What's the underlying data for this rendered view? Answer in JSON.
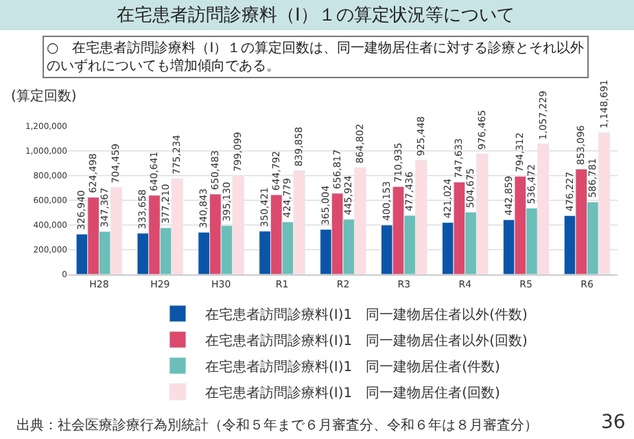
{
  "chart_data": {
    "type": "bar",
    "title": "在宅患者訪問診療料（Ⅰ）１の算定状況等について",
    "subtitle": "○　在宅患者訪問診療料（Ⅰ）１の算定回数は、同一建物居住者に対する診療とそれ以外のいずれについても増加傾向である。",
    "ylabel": "(算定回数)",
    "categories": [
      "H28",
      "H29",
      "H30",
      "R1",
      "R2",
      "R3",
      "R4",
      "R5",
      "R6"
    ],
    "series": [
      {
        "name": "在宅患者訪問診療料(Ⅰ)1　同一建物居住者以外(件数)",
        "color": "#0b55a8",
        "values": [
          326940,
          333658,
          340843,
          350421,
          365004,
          400153,
          421024,
          442859,
          476227
        ],
        "value_labels": [
          "326,940",
          "333,658",
          "340,843",
          "350,421",
          "365,004",
          "400,153",
          "421,024",
          "442,859",
          "476,227"
        ]
      },
      {
        "name": "在宅患者訪問診療料(Ⅰ)1　同一建物居住者以外(回数)",
        "color": "#db4a6c",
        "values": [
          624498,
          640641,
          650483,
          644792,
          656817,
          710935,
          747633,
          794312,
          853096
        ],
        "value_labels": [
          "624,498",
          "640,641",
          "650,483",
          "644,792",
          "656,817",
          "710,935",
          "747,633",
          "794,312",
          "853,096"
        ]
      },
      {
        "name": "在宅患者訪問診療料(Ⅰ)1　同一建物居住者(件数)",
        "color": "#6bbfb8",
        "values": [
          347367,
          377210,
          395130,
          424779,
          445924,
          477436,
          504675,
          536472,
          586781
        ],
        "value_labels": [
          "347,367",
          "377,210",
          "395,130",
          "424,779",
          "445,924",
          "477,436",
          "504,675",
          "536,472",
          "586,781"
        ]
      },
      {
        "name": "在宅患者訪問診療料(Ⅰ)1　同一建物居住者(回数)",
        "color": "#fbdde2",
        "values": [
          704459,
          775234,
          799099,
          839858,
          864802,
          925448,
          976465,
          1057229,
          1148691
        ],
        "value_labels": [
          "704,459",
          "775,234",
          "799,099",
          "839,858",
          "864,802",
          "925,448",
          "976,465",
          "1,057,229",
          "1,148,691"
        ]
      }
    ],
    "ylim": [
      0,
      1200000
    ],
    "yticks": [
      0,
      {
        "value": 200000,
        "label": "200,000"
      },
      {
        "value": 400000,
        "label": "400,000"
      },
      {
        "value": 600000,
        "label": "600,000"
      },
      {
        "value": 800000,
        "label": "800,000"
      },
      {
        "value": 1000000,
        "label": "1,000,000"
      },
      {
        "value": 1200000,
        "label": "1,200,000"
      }
    ],
    "grid": "y",
    "legend": "bottom",
    "annotations": [
      "出典：社会医療診療行為別統計（令和５年まで６月審査分、令和６年は８月審査分）",
      "36"
    ]
  }
}
